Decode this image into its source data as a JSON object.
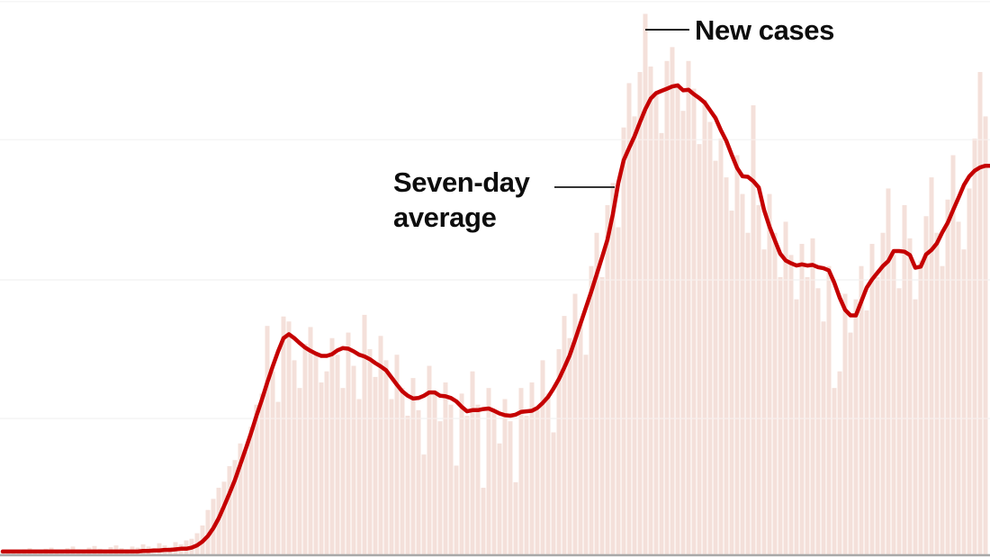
{
  "chart_data": {
    "type": "bar",
    "title": "",
    "xlabel": "",
    "ylabel": "",
    "x_unit": "day index (no axis tick labels visible in cropped chart)",
    "y_unit": "relative case count, 0-100 of chart height (no numeric axis labels visible)",
    "ylim": [
      0,
      100
    ],
    "grid": "horizontal gridlines only",
    "gridline_values": [
      24.5,
      49.5,
      74.8,
      99.7
    ],
    "legend_position": "inline annotations with leader lines",
    "series": [
      {
        "name": "New cases",
        "type": "bar",
        "color": "#f4e0da",
        "values": [
          0.5,
          0.8,
          0.6,
          0.4,
          0.9,
          1.1,
          0.7,
          0.5,
          1.0,
          1.2,
          0.8,
          0.6,
          1.1,
          1.4,
          0.9,
          0.7,
          1.2,
          1.5,
          1.0,
          0.8,
          1.3,
          1.6,
          1.1,
          0.9,
          1.4,
          1.2,
          1.8,
          1.4,
          1.1,
          2.0,
          1.6,
          1.3,
          2.2,
          1.8,
          2.5,
          2.8,
          3.8,
          5.2,
          8.0,
          10.0,
          12.0,
          13.1,
          15.9,
          17.0,
          20.0,
          18.5,
          23.0,
          27.0,
          29.0,
          41.2,
          33.0,
          27.5,
          42.9,
          42.0,
          35.0,
          30.0,
          38.0,
          41.0,
          36.0,
          31.0,
          33.0,
          39.0,
          36.0,
          30.0,
          40.0,
          34.0,
          28.0,
          43.2,
          37.0,
          32.0,
          39.4,
          35.0,
          28.0,
          36.0,
          30.0,
          25.0,
          31.8,
          26.0,
          18.0,
          34.0,
          29.0,
          24.0,
          31.0,
          27.0,
          16.0,
          29.0,
          25.0,
          33.0,
          27.0,
          12.0,
          30.0,
          26.0,
          20.0,
          28.0,
          24.0,
          13.0,
          30.0,
          25.0,
          31.0,
          26.0,
          35.0,
          29.0,
          22.0,
          37.0,
          43.0,
          39.0,
          47.0,
          42.0,
          36.0,
          52.0,
          58.0,
          50.0,
          63.0,
          67.0,
          59.0,
          77.0,
          85.0,
          79.0,
          87.0,
          97.5,
          88.0,
          83.0,
          76.0,
          89.0,
          91.5,
          85.0,
          80.0,
          89.0,
          84.0,
          74.0,
          82.0,
          78.0,
          71.0,
          75.0,
          68.0,
          62.0,
          72.0,
          65.0,
          58.0,
          81.0,
          63.0,
          55.0,
          65.0,
          58.0,
          50.0,
          60.0,
          54.0,
          46.0,
          56.0,
          50.0,
          57.0,
          48.0,
          42.0,
          52.0,
          30.0,
          33.0,
          47.0,
          40.0,
          46.0,
          52.0,
          44.0,
          56.0,
          50.0,
          58.0,
          66.0,
          54.0,
          48.0,
          63.0,
          57.0,
          46.0,
          53.0,
          61.0,
          68.0,
          58.0,
          52.0,
          64.0,
          72.0,
          60.0,
          55.0,
          66.0,
          75.0,
          87.0,
          79.0
        ]
      },
      {
        "name": "Seven-day average",
        "type": "line",
        "color": "#c50000",
        "values": [
          0.5,
          0.5,
          0.5,
          0.5,
          0.5,
          0.5,
          0.5,
          0.5,
          0.5,
          0.5,
          0.5,
          0.5,
          0.5,
          0.5,
          0.5,
          0.5,
          0.5,
          0.5,
          0.5,
          0.5,
          0.5,
          0.5,
          0.5,
          0.5,
          0.5,
          0.5,
          0.6,
          0.6,
          0.7,
          0.7,
          0.8,
          0.8,
          0.9,
          1.0,
          1.0,
          1.2,
          1.6,
          2.3,
          3.3,
          4.7,
          6.5,
          8.7,
          11.0,
          13.4,
          16.2,
          19.0,
          21.9,
          25.0,
          27.9,
          31.0,
          33.9,
          36.6,
          39.0,
          39.7,
          39.0,
          38.1,
          37.3,
          36.7,
          36.2,
          35.8,
          35.8,
          36.1,
          36.8,
          37.2,
          37.1,
          36.6,
          36.0,
          35.7,
          35.2,
          34.5,
          33.9,
          33.2,
          31.9,
          30.6,
          29.4,
          28.6,
          28.1,
          28.2,
          28.6,
          29.2,
          29.2,
          28.6,
          28.5,
          28.2,
          27.6,
          26.6,
          25.8,
          26.0,
          26.0,
          26.2,
          26.3,
          25.9,
          25.4,
          25.1,
          25.0,
          25.2,
          25.7,
          25.8,
          25.9,
          26.4,
          27.3,
          28.4,
          29.9,
          31.6,
          33.7,
          35.9,
          38.7,
          41.6,
          44.5,
          47.4,
          50.5,
          53.6,
          56.8,
          61.4,
          67.0,
          71.1,
          73.3,
          75.4,
          77.9,
          80.3,
          82.2,
          83.2,
          83.6,
          84.0,
          84.4,
          84.6,
          83.7,
          83.8,
          83.0,
          82.3,
          81.5,
          80.1,
          78.7,
          76.5,
          74.6,
          72.1,
          69.7,
          68.2,
          68.1,
          67.3,
          66.2,
          62.1,
          59.1,
          56.6,
          54.2,
          53.0,
          52.5,
          52.1,
          52.3,
          52.1,
          52.2,
          51.8,
          51.6,
          51.2,
          49.0,
          46.3,
          44.1,
          43.1,
          43.1,
          45.6,
          48.1,
          49.6,
          50.8,
          52.0,
          52.9,
          54.7,
          54.7,
          54.6,
          54.0,
          51.7,
          51.9,
          54.1,
          54.9,
          56.1,
          58.1,
          59.8,
          62.1,
          64.3,
          66.6,
          68.2,
          69.2,
          69.8,
          70.1
        ]
      }
    ],
    "annotations": [
      {
        "text": "New cases",
        "points_to": "tallest daily bar",
        "day_index": 119
      },
      {
        "text": "Seven-day average",
        "points_to": "average line on second-wave upswing",
        "day_index": 113
      }
    ]
  },
  "labels": {
    "new_cases": "New cases",
    "seven_day_line1": "Seven-day",
    "seven_day_line2": "average"
  },
  "colors": {
    "bar": "#f4e0da",
    "line": "#c50000",
    "gridline": "#ececec",
    "gridline_over_bars": "rgba(255,255,255,0.45)",
    "baseline": "#a8a8a8",
    "text": "#0d0d0d",
    "callout": "#1a1a1a"
  }
}
